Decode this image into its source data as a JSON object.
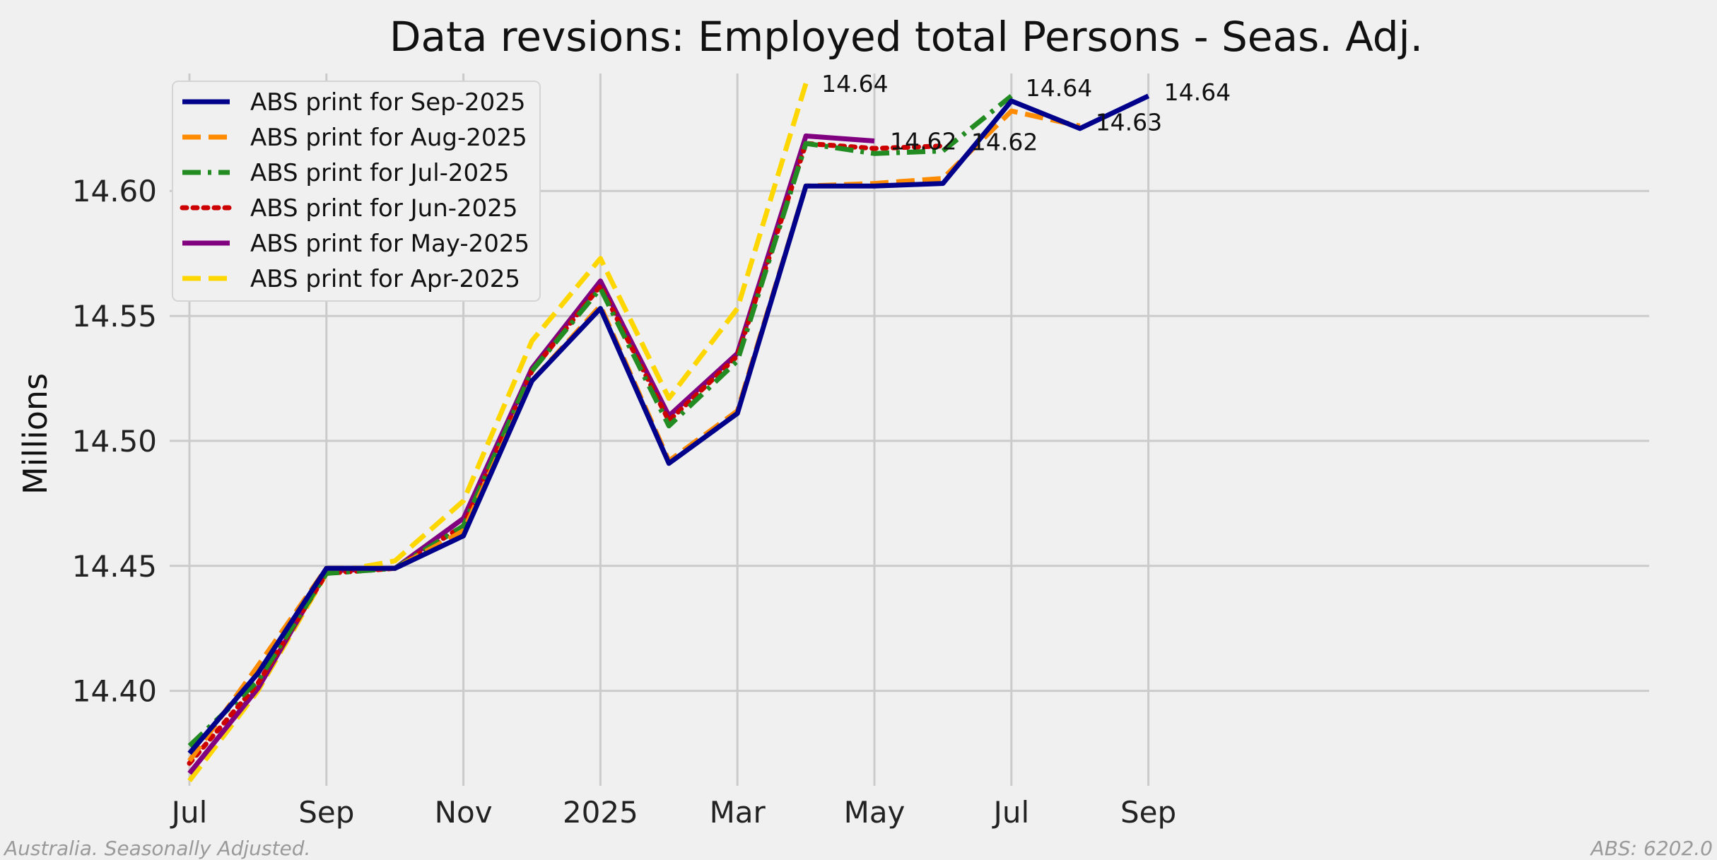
{
  "chart_data": {
    "type": "line",
    "title": "Data revsions: Employed total Persons - Seas. Adj.",
    "xlabel": "",
    "ylabel": "Millions",
    "x": [
      "2024-07",
      "2024-08",
      "2024-09",
      "2024-10",
      "2024-11",
      "2024-12",
      "2025-01",
      "2025-02",
      "2025-03",
      "2025-04",
      "2025-05",
      "2025-06",
      "2025-07",
      "2025-08",
      "2025-09"
    ],
    "xticks": [
      {
        "x": "2024-07",
        "label": "Jul"
      },
      {
        "x": "2024-09",
        "label": "Sep"
      },
      {
        "x": "2024-11",
        "label": "Nov"
      },
      {
        "x": "2025-01",
        "label": "2025"
      },
      {
        "x": "2025-03",
        "label": "Mar"
      },
      {
        "x": "2025-05",
        "label": "May"
      },
      {
        "x": "2025-07",
        "label": "Jul"
      },
      {
        "x": "2025-09",
        "label": "Sep"
      }
    ],
    "yticks": [
      14.4,
      14.45,
      14.5,
      14.55,
      14.6
    ],
    "ylim": [
      14.362,
      14.647
    ],
    "grid": true,
    "legend_position": "top-left",
    "series": [
      {
        "name": "ABS print for Sep-2025",
        "color": "#00008b",
        "dash": "solid",
        "values": [
          14.375,
          14.407,
          14.449,
          14.449,
          14.462,
          14.524,
          14.553,
          14.491,
          14.511,
          14.602,
          14.602,
          14.603,
          14.636,
          14.625,
          14.638
        ],
        "end_label": "14.64"
      },
      {
        "name": "ABS print for Aug-2025",
        "color": "#ff8c00",
        "dash": "dashed",
        "values": [
          14.372,
          14.41,
          14.449,
          14.449,
          14.464,
          14.524,
          14.554,
          14.492,
          14.512,
          14.602,
          14.603,
          14.605,
          14.632,
          14.626,
          null
        ],
        "end_label": "14.63"
      },
      {
        "name": "ABS print for Jul-2025",
        "color": "#228b22",
        "dash": "dashdot",
        "values": [
          14.378,
          14.404,
          14.447,
          14.449,
          14.466,
          14.528,
          14.561,
          14.506,
          14.532,
          14.619,
          14.615,
          14.616,
          14.638,
          null,
          null
        ],
        "end_label": "14.64"
      },
      {
        "name": "ABS print for Jun-2025",
        "color": "#cc0000",
        "dash": "dotted",
        "values": [
          14.371,
          14.403,
          14.447,
          14.449,
          14.466,
          14.528,
          14.562,
          14.508,
          14.534,
          14.619,
          14.617,
          14.618,
          null,
          null,
          null
        ],
        "end_label": "14.62"
      },
      {
        "name": "ABS print for May-2025",
        "color": "#800080",
        "dash": "solid",
        "values": [
          14.367,
          14.401,
          14.448,
          14.449,
          14.469,
          14.529,
          14.564,
          14.51,
          14.535,
          14.622,
          14.62,
          null,
          null,
          null,
          null
        ],
        "end_label": "14.62"
      },
      {
        "name": "ABS print for Apr-2025",
        "color": "#ffd700",
        "dash": "dashed",
        "values": [
          14.364,
          14.4,
          14.447,
          14.452,
          14.476,
          14.54,
          14.573,
          14.517,
          14.553,
          14.643,
          null,
          null,
          null,
          null,
          null
        ],
        "end_label": "14.64"
      }
    ]
  },
  "footer": {
    "left": "Australia. Seasonally Adjusted.",
    "right": "ABS: 6202.0"
  }
}
